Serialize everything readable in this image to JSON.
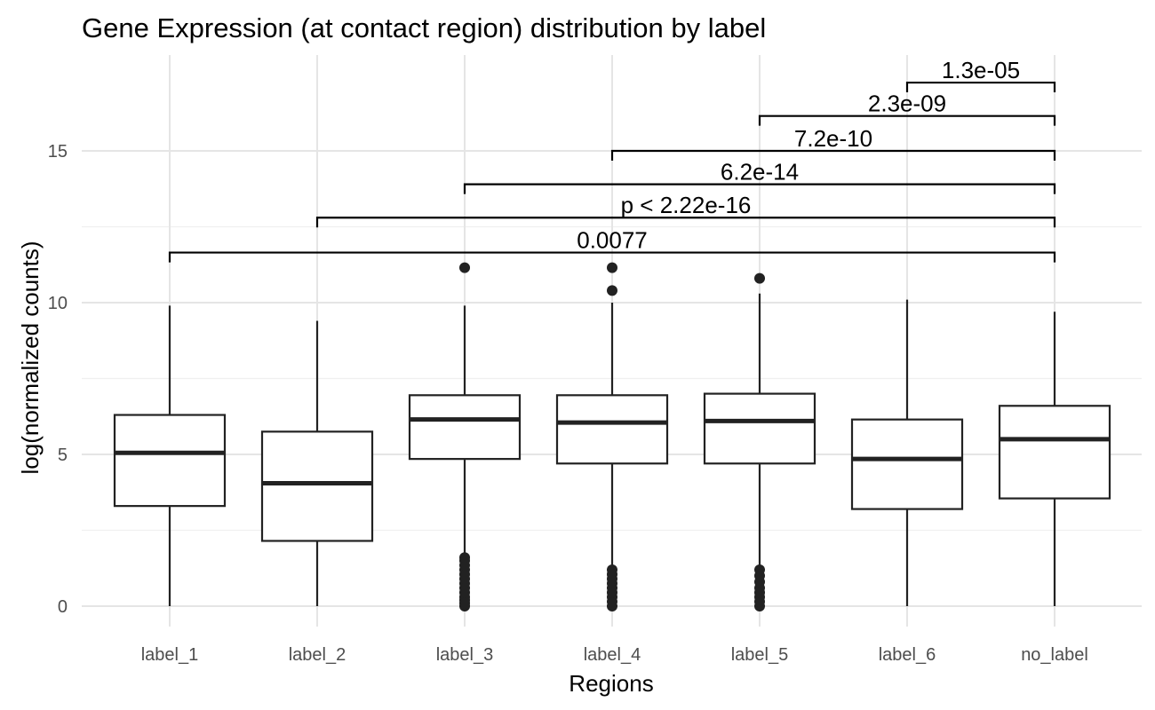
{
  "chart_data": {
    "type": "box",
    "title": "Gene Expression (at contact region) distribution by label",
    "xlabel": "Regions",
    "ylabel": "log(normalized counts)",
    "ylim": [
      -0.8,
      17.5
    ],
    "yticks": [
      0,
      5,
      10,
      15
    ],
    "grid": true,
    "categories": [
      "label_1",
      "label_2",
      "label_3",
      "label_4",
      "label_5",
      "label_6",
      "no_label"
    ],
    "boxes": [
      {
        "category": "label_1",
        "min": 0.0,
        "q1": 3.3,
        "median": 5.05,
        "q3": 6.3,
        "max": 9.9,
        "outliers": []
      },
      {
        "category": "label_2",
        "min": 0.0,
        "q1": 2.15,
        "median": 4.05,
        "q3": 5.75,
        "max": 9.4,
        "outliers": []
      },
      {
        "category": "label_3",
        "min": 1.75,
        "q1": 4.85,
        "median": 6.15,
        "q3": 6.95,
        "max": 9.9,
        "outliers": [
          0.0,
          0.1,
          0.2,
          0.3,
          0.45,
          0.6,
          0.75,
          0.9,
          1.05,
          1.2,
          1.35,
          1.5,
          1.6,
          11.15
        ]
      },
      {
        "category": "label_4",
        "min": 1.3,
        "q1": 4.7,
        "median": 6.05,
        "q3": 6.95,
        "max": 10.0,
        "outliers": [
          0.0,
          0.15,
          0.3,
          0.45,
          0.6,
          0.75,
          0.9,
          1.05,
          1.2,
          10.4,
          11.15
        ]
      },
      {
        "category": "label_5",
        "min": 1.3,
        "q1": 4.7,
        "median": 6.1,
        "q3": 7.0,
        "max": 10.3,
        "outliers": [
          0.0,
          0.15,
          0.3,
          0.45,
          0.6,
          0.8,
          1.0,
          1.2,
          10.8
        ]
      },
      {
        "category": "label_6",
        "min": 0.0,
        "q1": 3.2,
        "median": 4.85,
        "q3": 6.15,
        "max": 10.1,
        "outliers": []
      },
      {
        "category": "no_label",
        "min": 0.0,
        "q1": 3.55,
        "median": 5.5,
        "q3": 6.6,
        "max": 9.7,
        "outliers": []
      }
    ],
    "comparisons": [
      {
        "from": "label_1",
        "to": "no_label",
        "y": 11.65,
        "label": "0.0077"
      },
      {
        "from": "label_2",
        "to": "no_label",
        "y": 12.8,
        "label": "p < 2.22e-16"
      },
      {
        "from": "label_3",
        "to": "no_label",
        "y": 13.9,
        "label": "6.2e-14"
      },
      {
        "from": "label_4",
        "to": "no_label",
        "y": 15.0,
        "label": "7.2e-10"
      },
      {
        "from": "label_5",
        "to": "no_label",
        "y": 16.15,
        "label": "2.3e-09"
      },
      {
        "from": "label_6",
        "to": "no_label",
        "y": 17.25,
        "label": "1.3e-05"
      }
    ],
    "colors": {
      "box_stroke": "#222222",
      "box_fill": "#ffffff",
      "grid_major": "#e5e5e5",
      "grid_minor": "#f0f0f0",
      "comparison_line": "#000000"
    }
  }
}
